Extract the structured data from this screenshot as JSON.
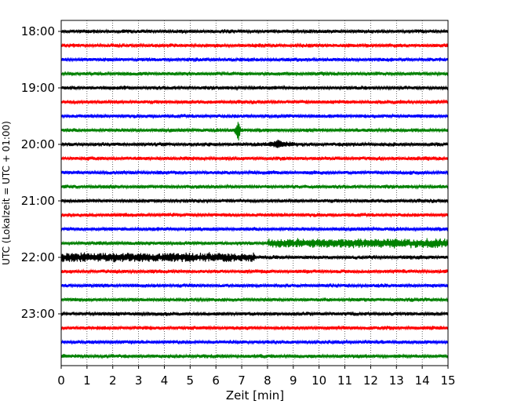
{
  "chart_data": {
    "type": "line",
    "title": "",
    "xlabel": "Zeit  [min]",
    "ylabel": "UTC (Lokalzeit = UTC + 01:00)",
    "xlim": [
      0,
      15
    ],
    "x_ticks": [
      0,
      1,
      2,
      3,
      4,
      5,
      6,
      7,
      8,
      9,
      10,
      11,
      12,
      13,
      14,
      15
    ],
    "grid_x": "dotted",
    "trace_minutes": 15,
    "traces_start": "18:00",
    "trace_count": 24,
    "y_tick_labels": [
      "18:00",
      "19:00",
      "20:00",
      "21:00",
      "22:00",
      "23:00"
    ],
    "colors": [
      "#000000",
      "#ff0000",
      "#0000ff",
      "#008000"
    ],
    "events": [
      {
        "trace": "19:45",
        "x": 6.85,
        "amplitude": "large"
      },
      {
        "trace": "20:00",
        "x": 8.4,
        "amplitude": "medium"
      },
      {
        "trace": "21:45",
        "x": 8.0,
        "x_end": 15,
        "amplitude": "elevated noise"
      },
      {
        "trace": "22:00",
        "x": 0.0,
        "x_end": 7.5,
        "amplitude": "elevated noise"
      }
    ]
  }
}
